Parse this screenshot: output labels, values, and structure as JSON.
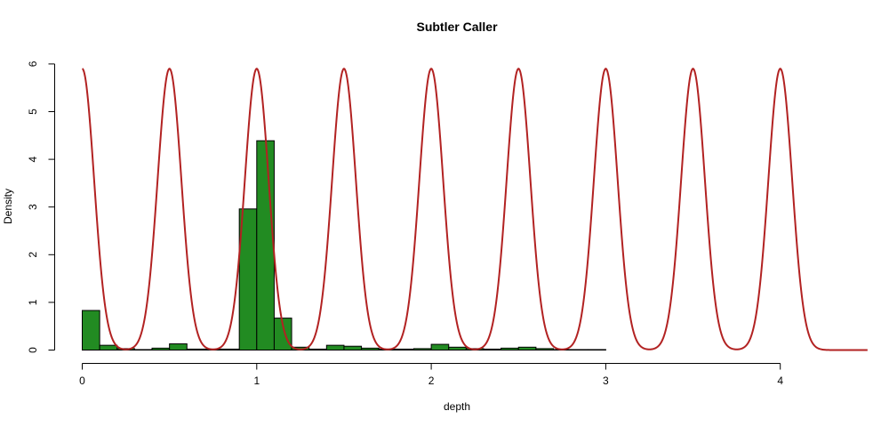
{
  "chart_data": {
    "type": "bar",
    "title": "Subtler Caller",
    "xlabel": "depth",
    "ylabel": "Density",
    "xlim": [
      0,
      4.5
    ],
    "ylim": [
      0,
      6
    ],
    "xticks": [
      "0",
      "1",
      "2",
      "3",
      "4"
    ],
    "xtick_values": [
      0,
      1,
      2,
      3,
      4
    ],
    "yticks": [
      "0",
      "1",
      "2",
      "3",
      "4",
      "5",
      "6"
    ],
    "ytick_values": [
      0,
      1,
      2,
      3,
      4,
      5,
      6
    ],
    "grid": false,
    "histogram": {
      "bin_width": 0.1,
      "color": "#228B22",
      "bins": [
        {
          "x0": 0.0,
          "density": 0.83
        },
        {
          "x0": 0.1,
          "density": 0.1
        },
        {
          "x0": 0.2,
          "density": 0.03
        },
        {
          "x0": 0.3,
          "density": 0.01
        },
        {
          "x0": 0.4,
          "density": 0.04
        },
        {
          "x0": 0.5,
          "density": 0.13
        },
        {
          "x0": 0.6,
          "density": 0.02
        },
        {
          "x0": 0.7,
          "density": 0.02
        },
        {
          "x0": 0.8,
          "density": 0.02
        },
        {
          "x0": 0.9,
          "density": 2.96
        },
        {
          "x0": 1.0,
          "density": 4.39
        },
        {
          "x0": 1.1,
          "density": 0.67
        },
        {
          "x0": 1.2,
          "density": 0.06
        },
        {
          "x0": 1.3,
          "density": 0.02
        },
        {
          "x0": 1.4,
          "density": 0.1
        },
        {
          "x0": 1.5,
          "density": 0.08
        },
        {
          "x0": 1.6,
          "density": 0.04
        },
        {
          "x0": 1.7,
          "density": 0.02
        },
        {
          "x0": 1.8,
          "density": 0.02
        },
        {
          "x0": 1.9,
          "density": 0.03
        },
        {
          "x0": 2.0,
          "density": 0.12
        },
        {
          "x0": 2.1,
          "density": 0.06
        },
        {
          "x0": 2.2,
          "density": 0.03
        },
        {
          "x0": 2.3,
          "density": 0.02
        },
        {
          "x0": 2.4,
          "density": 0.04
        },
        {
          "x0": 2.5,
          "density": 0.06
        },
        {
          "x0": 2.6,
          "density": 0.03
        },
        {
          "x0": 2.7,
          "density": 0.01
        },
        {
          "x0": 2.8,
          "density": 0.01
        },
        {
          "x0": 2.9,
          "density": 0.01
        }
      ]
    },
    "overlay": {
      "type": "line",
      "color": "#B22222",
      "description_peaks_at": [
        0,
        0.5,
        1,
        1.5,
        2,
        2.5,
        3,
        3.5,
        4
      ],
      "peak_density": 5.9,
      "sd": 0.068
    }
  }
}
